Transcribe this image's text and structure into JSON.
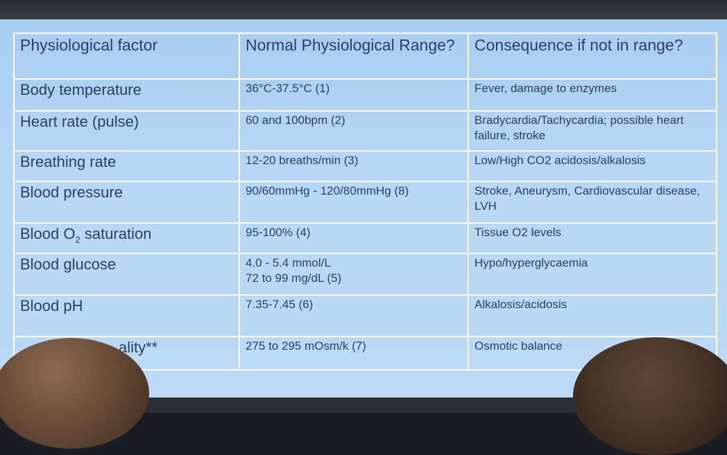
{
  "table": {
    "headers": [
      "Physiological factor",
      "Normal Physiological Range?",
      "Consequence if not in range?"
    ],
    "rows": [
      {
        "factor": "Body temperature",
        "range": "36°C-37.5°C (1)",
        "consequence": "Fever, damage to enzymes"
      },
      {
        "factor": "Heart rate (pulse)",
        "range": "60 and 100bpm (2)",
        "consequence": "Bradycardia/Tachycardia; possible heart failure, stroke"
      },
      {
        "factor": "Breathing rate",
        "range": "12-20 breaths/min (3)",
        "consequence": "Low/High CO2 acidosis/alkalosis"
      },
      {
        "factor": "Blood pressure",
        "range": "90/60mmHg - 120/80mmHg (8)",
        "consequence": "Stroke, Aneurysm, Cardiovascular disease, LVH"
      },
      {
        "factor_prefix": "Blood O",
        "factor_sub": "2",
        "factor_suffix": " saturation",
        "range": "95-100% (4)",
        "consequence": "Tissue O2 levels"
      },
      {
        "factor": "Blood glucose",
        "range_line1": "4.0 - 5.4 mmol/L",
        "range_line2": "72 to 99 mg/dL (5)",
        "consequence": "Hypo/hyperglycaemia"
      },
      {
        "factor": "Blood pH",
        "range": "7.35-7.45 (6)",
        "consequence": "Alkalosis/acidosis"
      },
      {
        "factor": "ality**",
        "range": "275 to 295 mOsm/k (7)",
        "consequence": "Osmotic balance"
      }
    ]
  }
}
